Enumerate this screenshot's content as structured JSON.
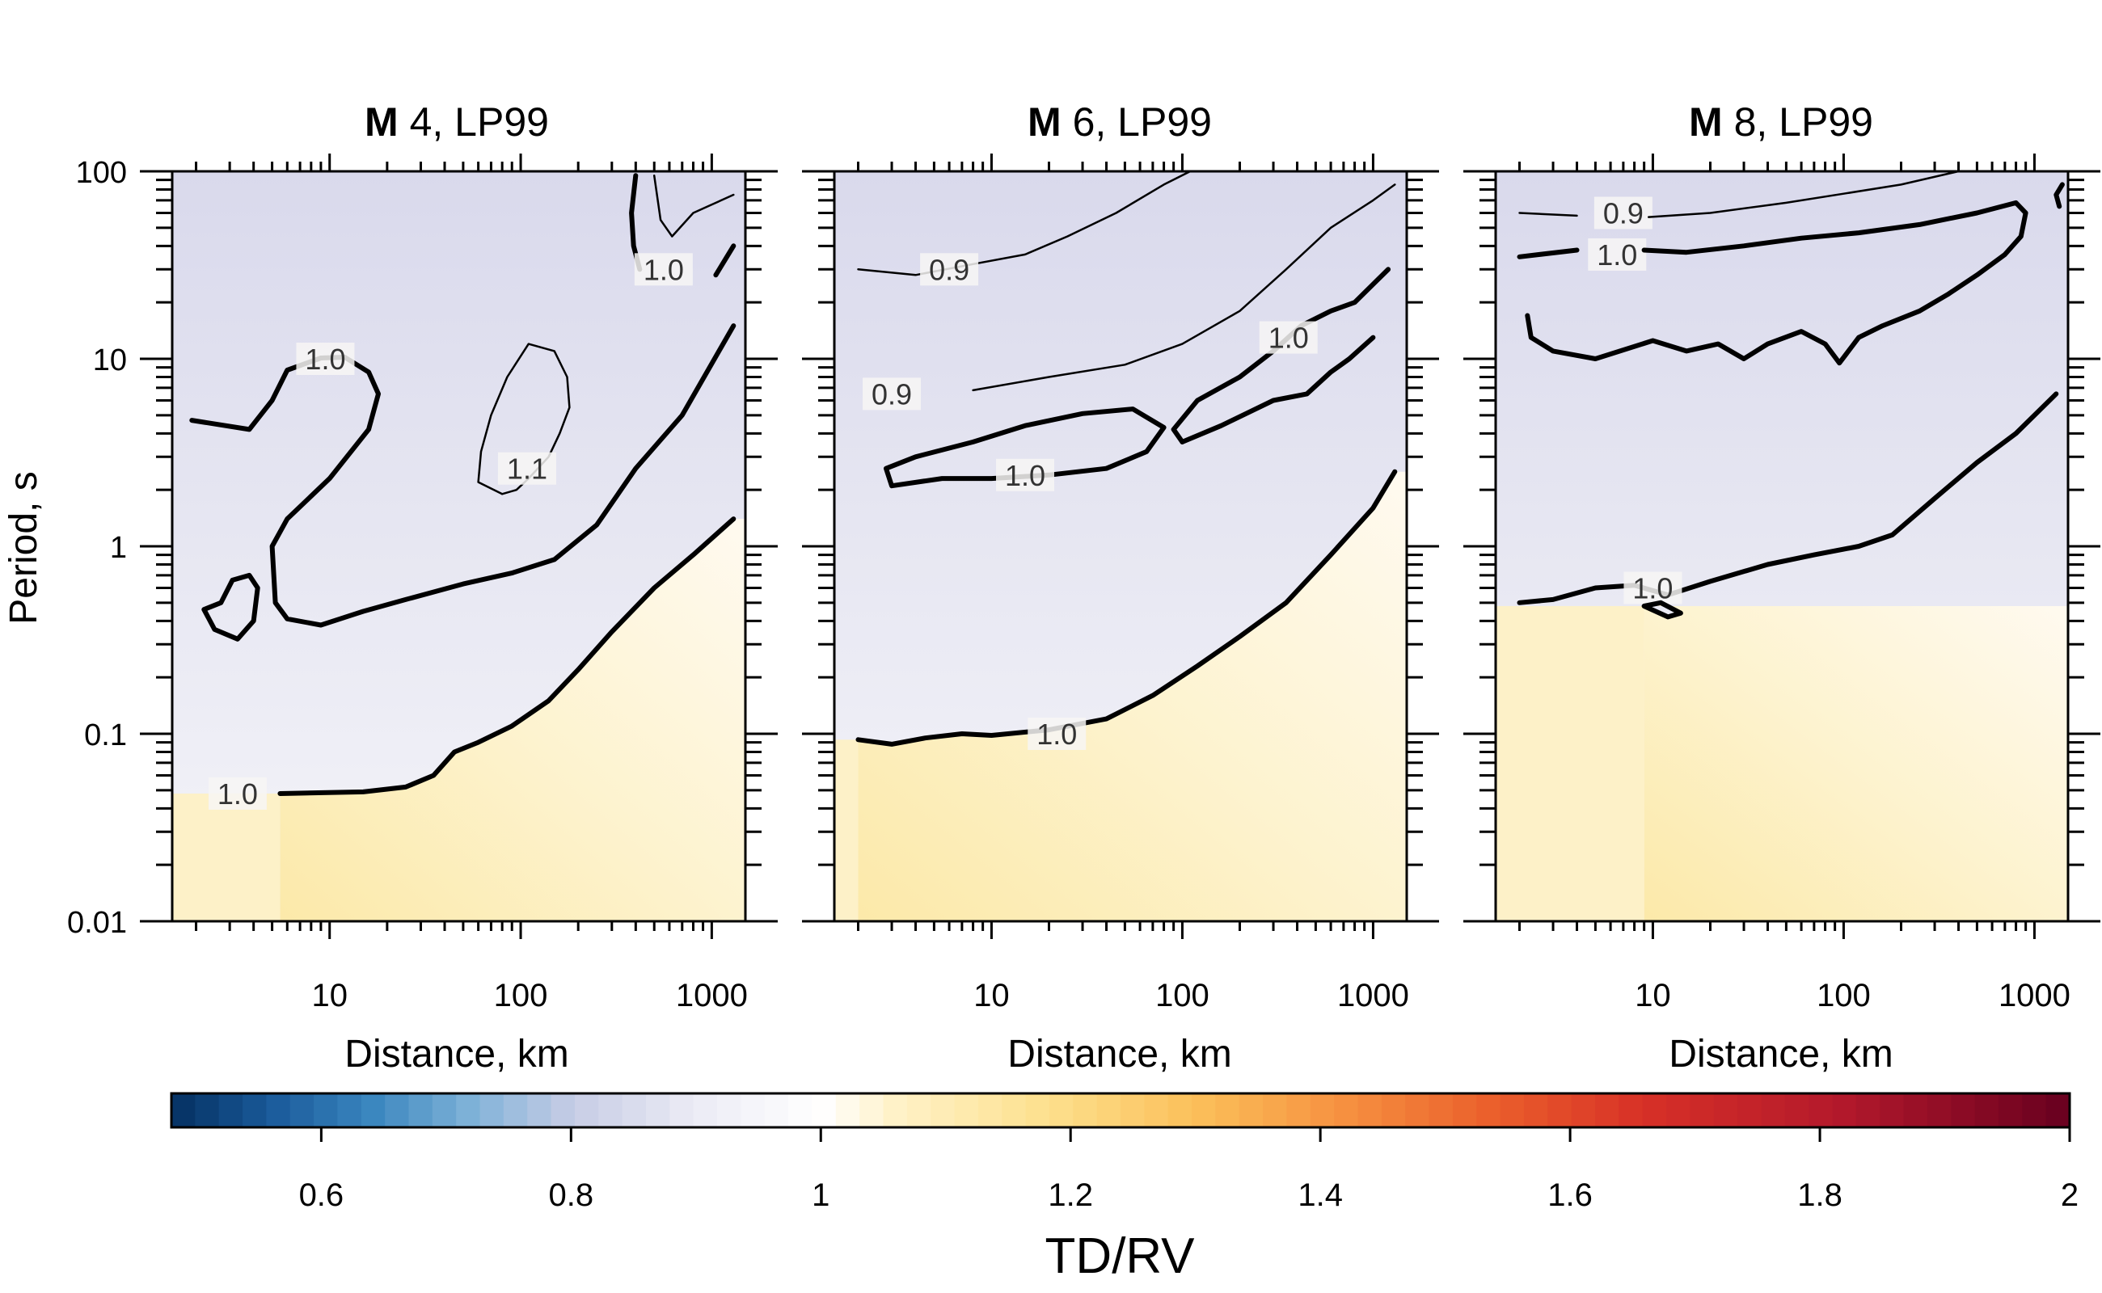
{
  "figure": {
    "ylabel": "Period, s",
    "xlabel": "Distance, km",
    "colorbar_label": "TD/RV"
  },
  "chart_data": [
    {
      "type": "heatmap",
      "title_bold": "M",
      "title_rest": " 4, LP99",
      "xlabel": "Distance, km",
      "ylabel": "Period, s",
      "x_scale": "log",
      "y_scale": "log",
      "xlim": [
        1.5,
        1500
      ],
      "ylim": [
        0.01,
        100
      ],
      "xticks": [
        10,
        100,
        1000
      ],
      "xtick_labels": [
        "10",
        "100",
        "1000"
      ],
      "yticks": [
        0.01,
        0.1,
        1,
        10,
        100
      ],
      "ytick_labels": [
        "0.01",
        "0.1",
        "1",
        "10",
        "100"
      ],
      "contours": [
        {
          "level": "1.0",
          "weight": "bold",
          "points": [
            [
              5.5,
              0.048
            ],
            [
              15,
              0.049
            ],
            [
              25,
              0.052
            ],
            [
              35,
              0.06
            ],
            [
              45,
              0.08
            ],
            [
              60,
              0.09
            ],
            [
              90,
              0.11
            ],
            [
              140,
              0.15
            ],
            [
              200,
              0.22
            ],
            [
              300,
              0.35
            ],
            [
              500,
              0.6
            ],
            [
              800,
              0.9
            ],
            [
              1300,
              1.4
            ]
          ],
          "label_at": [
            3.3,
            0.048
          ]
        },
        {
          "level": "1.0",
          "weight": "bold",
          "points": [
            [
              1.9,
              4.7
            ],
            [
              3.8,
              4.2
            ],
            [
              5,
              6
            ],
            [
              6,
              8.7
            ],
            [
              9,
              10.1
            ],
            [
              12,
              10.2
            ],
            [
              16,
              8.5
            ],
            [
              18,
              6.5
            ],
            [
              16,
              4.2
            ],
            [
              10,
              2.3
            ],
            [
              6,
              1.4
            ],
            [
              5,
              1.0
            ],
            [
              5.2,
              0.5
            ],
            [
              6,
              0.41
            ],
            [
              9,
              0.38
            ],
            [
              15,
              0.45
            ],
            [
              25,
              0.52
            ],
            [
              50,
              0.63
            ],
            [
              90,
              0.72
            ],
            [
              150,
              0.85
            ],
            [
              250,
              1.3
            ],
            [
              400,
              2.6
            ],
            [
              700,
              5
            ],
            [
              1300,
              15
            ]
          ],
          "label_at": [
            9.5,
            10
          ]
        },
        {
          "level": "1.0",
          "weight": "bold",
          "points": [
            [
              2.7,
              0.5
            ],
            [
              2.2,
              0.46
            ],
            [
              2.5,
              0.36
            ],
            [
              3.3,
              0.32
            ],
            [
              4,
              0.4
            ],
            [
              4.2,
              0.6
            ],
            [
              3.8,
              0.7
            ],
            [
              3.1,
              0.66
            ],
            [
              2.7,
              0.5
            ]
          ]
        },
        {
          "level": "1.0",
          "weight": "bold",
          "points": [
            [
              400,
              95
            ],
            [
              380,
              60
            ],
            [
              390,
              40
            ],
            [
              420,
              30
            ]
          ]
        },
        {
          "level": "1.0",
          "weight": "bold",
          "points": [
            [
              1050,
              28
            ],
            [
              1300,
              40
            ]
          ],
          "label_at": [
            560,
            30
          ]
        },
        {
          "level": "1.1",
          "weight": "normal",
          "points": [
            [
              80,
              1.9
            ],
            [
              60,
              2.2
            ],
            [
              62,
              3.2
            ],
            [
              70,
              5
            ],
            [
              85,
              8
            ],
            [
              110,
              12
            ],
            [
              150,
              11
            ],
            [
              175,
              8
            ],
            [
              180,
              5.5
            ],
            [
              160,
              4
            ],
            [
              140,
              3
            ],
            [
              110,
              2.3
            ],
            [
              95,
              2
            ],
            [
              80,
              1.9
            ]
          ],
          "label_at": [
            108,
            2.6
          ]
        },
        {
          "level": "0.9",
          "weight": "normal",
          "points": [
            [
              500,
              95
            ],
            [
              540,
              55
            ],
            [
              620,
              45
            ],
            [
              800,
              60
            ],
            [
              1300,
              75
            ]
          ]
        }
      ]
    },
    {
      "type": "heatmap",
      "title_bold": "M",
      "title_rest": " 6, LP99",
      "xlabel": "Distance, km",
      "x_scale": "log",
      "y_scale": "log",
      "xlim": [
        1.5,
        1500
      ],
      "ylim": [
        0.01,
        100
      ],
      "xticks": [
        10,
        100,
        1000
      ],
      "xtick_labels": [
        "10",
        "100",
        "1000"
      ],
      "contours": [
        {
          "level": "1.0",
          "weight": "bold",
          "points": [
            [
              2,
              0.093
            ],
            [
              3,
              0.088
            ],
            [
              4.5,
              0.095
            ],
            [
              7,
              0.1
            ],
            [
              10,
              0.098
            ],
            [
              20,
              0.105
            ],
            [
              40,
              0.12
            ],
            [
              70,
              0.16
            ],
            [
              120,
              0.23
            ],
            [
              200,
              0.33
            ],
            [
              350,
              0.5
            ],
            [
              600,
              0.9
            ],
            [
              1000,
              1.6
            ],
            [
              1300,
              2.5
            ]
          ],
          "label_at": [
            22,
            0.1
          ]
        },
        {
          "level": "1.0",
          "weight": "bold",
          "points": [
            [
              3,
              2.1
            ],
            [
              2.8,
              2.6
            ],
            [
              4,
              3
            ],
            [
              8,
              3.6
            ],
            [
              15,
              4.4
            ],
            [
              30,
              5.1
            ],
            [
              55,
              5.4
            ],
            [
              80,
              4.3
            ],
            [
              65,
              3.2
            ],
            [
              40,
              2.6
            ],
            [
              20,
              2.4
            ],
            [
              10,
              2.3
            ],
            [
              5.5,
              2.3
            ],
            [
              3,
              2.1
            ]
          ],
          "label_at": [
            15,
            2.4
          ]
        },
        {
          "level": "1.0",
          "weight": "bold",
          "points": [
            [
              100,
              3.6
            ],
            [
              90,
              4.2
            ],
            [
              120,
              6
            ],
            [
              200,
              8
            ],
            [
              300,
              11
            ],
            [
              420,
              15
            ],
            [
              600,
              18
            ],
            [
              800,
              20
            ],
            [
              1000,
              25
            ],
            [
              1200,
              30
            ]
          ],
          "label_at": [
            360,
            13
          ]
        },
        {
          "level": "1.0",
          "weight": "bold",
          "points": [
            [
              100,
              3.6
            ],
            [
              160,
              4.4
            ],
            [
              300,
              6
            ],
            [
              450,
              6.5
            ],
            [
              600,
              8.5
            ],
            [
              750,
              10
            ],
            [
              1000,
              13
            ]
          ]
        },
        {
          "level": "0.9",
          "weight": "normal",
          "points": [
            [
              2,
              30
            ],
            [
              4,
              28
            ],
            [
              8,
              32
            ],
            [
              15,
              36
            ],
            [
              25,
              45
            ],
            [
              45,
              60
            ],
            [
              80,
              85
            ],
            [
              110,
              100
            ]
          ],
          "label_at": [
            6,
            30
          ]
        },
        {
          "level": "0.9",
          "weight": "normal",
          "points": [
            [
              8,
              6.8
            ],
            [
              20,
              8
            ],
            [
              50,
              9.3
            ],
            [
              100,
              12
            ],
            [
              200,
              18
            ],
            [
              350,
              30
            ],
            [
              600,
              50
            ],
            [
              1000,
              70
            ],
            [
              1300,
              85
            ]
          ],
          "label_at": [
            3,
            6.5
          ]
        }
      ]
    },
    {
      "type": "heatmap",
      "title_bold": "M",
      "title_rest": " 8, LP99",
      "xlabel": "Distance, km",
      "x_scale": "log",
      "y_scale": "log",
      "xlim": [
        1.5,
        1500
      ],
      "ylim": [
        0.01,
        100
      ],
      "xticks": [
        10,
        100,
        1000
      ],
      "xtick_labels": [
        "10",
        "100",
        "1000"
      ],
      "contours": [
        {
          "level": "0.9",
          "weight": "normal",
          "points": [
            [
              2,
              60
            ],
            [
              4,
              58
            ]
          ],
          "label_at": [
            7,
            60
          ]
        },
        {
          "level": "0.9",
          "weight": "normal",
          "points": [
            [
              9.5,
              57
            ],
            [
              20,
              60
            ],
            [
              50,
              68
            ],
            [
              100,
              76
            ],
            [
              200,
              85
            ],
            [
              400,
              100
            ]
          ]
        },
        {
          "level": "1.0",
          "weight": "bold",
          "points": [
            [
              2,
              35
            ],
            [
              4,
              38
            ]
          ],
          "label_at": [
            6.5,
            36
          ]
        },
        {
          "level": "1.0",
          "weight": "bold",
          "points": [
            [
              9,
              38
            ],
            [
              15,
              37
            ],
            [
              30,
              40
            ],
            [
              60,
              44
            ],
            [
              120,
              47
            ],
            [
              250,
              52
            ],
            [
              500,
              60
            ],
            [
              800,
              68
            ],
            [
              900,
              60
            ],
            [
              850,
              45
            ],
            [
              700,
              36
            ],
            [
              500,
              28
            ],
            [
              350,
              22
            ],
            [
              250,
              18
            ],
            [
              160,
              15
            ],
            [
              120,
              13
            ],
            [
              95,
              9.5
            ],
            [
              80,
              12
            ],
            [
              60,
              14
            ],
            [
              40,
              12
            ],
            [
              30,
              10
            ],
            [
              22,
              12
            ],
            [
              15,
              11
            ],
            [
              10,
              12.5
            ],
            [
              5,
              10
            ],
            [
              3,
              11
            ],
            [
              2.3,
              13
            ],
            [
              2.2,
              17
            ]
          ]
        },
        {
          "level": "1.0",
          "weight": "bold",
          "points": [
            [
              2,
              0.5
            ],
            [
              3,
              0.52
            ],
            [
              5,
              0.6
            ],
            [
              8,
              0.62
            ],
            [
              12,
              0.55
            ],
            [
              20,
              0.65
            ],
            [
              40,
              0.8
            ],
            [
              70,
              0.9
            ],
            [
              120,
              1
            ],
            [
              180,
              1.15
            ],
            [
              300,
              1.8
            ],
            [
              500,
              2.8
            ],
            [
              800,
              4
            ],
            [
              1300,
              6.5
            ]
          ],
          "label_at": [
            10,
            0.6
          ]
        },
        {
          "level": "1.0",
          "weight": "bold",
          "points": [
            [
              9,
              0.48
            ],
            [
              12,
              0.42
            ],
            [
              14,
              0.44
            ],
            [
              11,
              0.5
            ],
            [
              9,
              0.48
            ]
          ]
        },
        {
          "level": "1.0",
          "weight": "bold",
          "points": [
            [
              1400,
              85
            ],
            [
              1300,
              75
            ],
            [
              1350,
              65
            ]
          ]
        }
      ]
    }
  ],
  "colorbar": {
    "label": "TD/RV",
    "ticks": [
      0.6,
      0.8,
      1,
      1.2,
      1.4,
      1.6,
      1.8,
      2
    ],
    "tick_labels": [
      "0.6",
      "0.8",
      "1",
      "1.2",
      "1.4",
      "1.6",
      "1.8",
      "2"
    ],
    "range": [
      0.48,
      2
    ],
    "colors": [
      "#053061",
      "#2166ac",
      "#4393c3",
      "#92c5de",
      "#d1d1e9",
      "#f4f4fa",
      "#ffffff",
      "#fff2c4",
      "#fde39a",
      "#fdd060",
      "#f9a745",
      "#ef6f30",
      "#d73027",
      "#b2182b",
      "#67001f"
    ]
  }
}
